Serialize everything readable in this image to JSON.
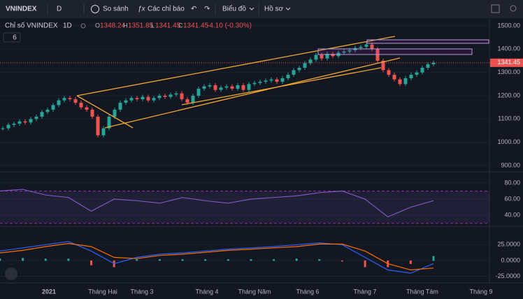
{
  "toolbar": {
    "symbol": "VNINDEX",
    "interval": "D",
    "compare": "So sánh",
    "indicators": "Các chỉ báo",
    "chart_type": "Biểu đồ",
    "profile": "Hồ sơ"
  },
  "legend": {
    "name": "Chỉ số VNINDEX",
    "interval": "1D",
    "open_key": "O",
    "open": 1348.24,
    "high_key": "H",
    "high": 1351.85,
    "low_key": "L",
    "low": 1341.45,
    "close_key": "C",
    "close": 1341.45,
    "change": "-4.10 (-0.30%)",
    "indicator_count": "6"
  },
  "price_pane": {
    "ylim": [
      876,
      1527
    ],
    "yticks": [
      {
        "value": 1500,
        "label": "1500.00"
      },
      {
        "value": 1400,
        "label": "1400.00"
      },
      {
        "value": 1300,
        "label": "1300.00"
      },
      {
        "value": 1200,
        "label": "1200.00"
      },
      {
        "value": 1100,
        "label": "1100.00"
      },
      {
        "value": 1000,
        "label": "1000.00"
      },
      {
        "value": 900,
        "label": "900.00"
      }
    ],
    "closes": [
      1060,
      1075,
      1080,
      1090,
      1085,
      1100,
      1110,
      1130,
      1140,
      1160,
      1180,
      1190,
      1185,
      1170,
      1150,
      1140,
      1110,
      1030,
      1060,
      1110,
      1140,
      1170,
      1180,
      1190,
      1185,
      1195,
      1180,
      1190,
      1200,
      1195,
      1205,
      1210,
      1185,
      1170,
      1200,
      1230,
      1240,
      1245,
      1225,
      1235,
      1240,
      1230,
      1245,
      1225,
      1250,
      1255,
      1260,
      1265,
      1270,
      1260,
      1275,
      1290,
      1310,
      1320,
      1340,
      1355,
      1375,
      1360,
      1380,
      1370,
      1385,
      1390,
      1395,
      1405,
      1410,
      1420,
      1400,
      1350,
      1310,
      1290,
      1270,
      1250,
      1275,
      1290,
      1300,
      1320,
      1335,
      1341.45
    ],
    "last": {
      "value": 1341.45,
      "label": "1341.45"
    }
  },
  "rsi_pane": {
    "ylim": [
      28,
      92
    ],
    "yticks": [
      {
        "value": 80,
        "label": "80.00"
      },
      {
        "value": 60,
        "label": "60.00"
      },
      {
        "value": 40,
        "label": "40.00"
      }
    ],
    "bands": [
      70,
      30
    ],
    "values": [
      70,
      72,
      65,
      62,
      45,
      60,
      58,
      55,
      62,
      58,
      55,
      60,
      62,
      64,
      68,
      70,
      60,
      38,
      50,
      58
    ]
  },
  "macd_pane": {
    "ylim": [
      -30,
      53
    ],
    "yticks": [
      {
        "value": 25,
        "label": "25.0000"
      },
      {
        "value": 0,
        "label": "0.0000"
      },
      {
        "value": -25,
        "label": "-25.0000"
      }
    ],
    "macd": [
      15,
      20,
      25,
      30,
      15,
      -5,
      5,
      10,
      12,
      15,
      18,
      20,
      22,
      25,
      28,
      25,
      5,
      -15,
      -20,
      -5
    ],
    "signal": [
      12,
      16,
      22,
      27,
      22,
      5,
      3,
      8,
      10,
      13,
      16,
      18,
      20,
      22,
      26,
      26,
      15,
      -5,
      -15,
      -12
    ]
  },
  "time_axis": {
    "labels": [
      "2021",
      "Tháng Hai",
      "Tháng 3",
      "Tháng 4",
      "Tháng Năm",
      "Tháng 6",
      "Tháng 7",
      "Tháng Tám",
      "Tháng 9"
    ]
  }
}
